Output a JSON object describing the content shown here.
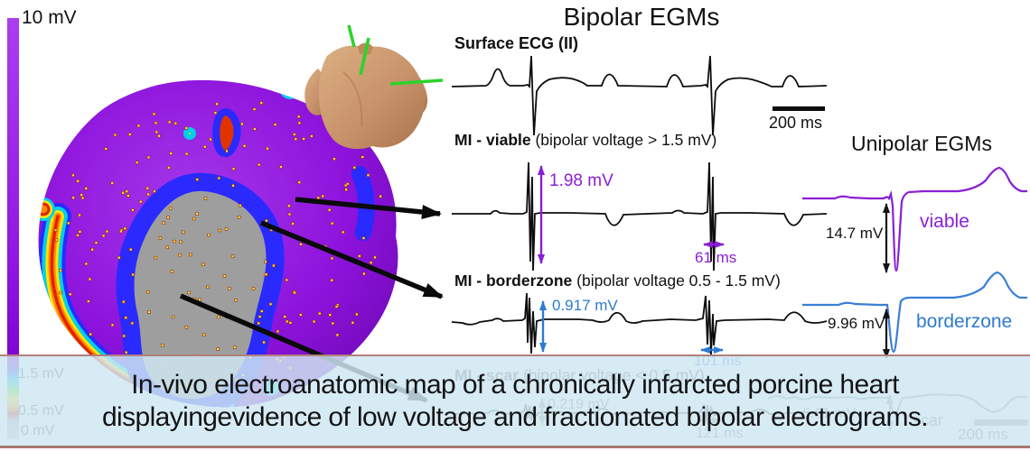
{
  "colorbar": {
    "top_label": "10 mV",
    "viable_threshold_label": "1.5 mV",
    "scar_threshold_label": "0.5 mV",
    "bottom_label": "0 mV"
  },
  "bipolar": {
    "title": "Bipolar EGMs",
    "surface_ecg_label": "Surface ECG (II)",
    "scalebar_label": "200 ms",
    "viable": {
      "label_bold": "MI - viable",
      "label_rest": " (bipolar voltage > 1.5 mV)",
      "voltage": "1.98 mV",
      "duration": "61 ms"
    },
    "borderzone": {
      "label_bold": "MI - borderzone",
      "label_rest": " (bipolar voltage 0.5 - 1.5 mV)",
      "voltage": "0.917 mV",
      "duration": "101 ms"
    },
    "scar": {
      "label_bold": "MI - scar",
      "label_rest": " (bipolar voltage < 0.5 mV)",
      "voltage": "0.219 mV",
      "duration": "121 ms"
    }
  },
  "unipolar": {
    "title": "Unipolar EGMs",
    "viable": {
      "voltage": "14.7 mV",
      "label": "viable"
    },
    "borderzone": {
      "voltage": "9.96 mV",
      "label": "borderzone"
    },
    "scar": {
      "voltage": "6.61 mV",
      "label": "scar",
      "scalebar_label": "200 ms"
    }
  },
  "caption": {
    "line1": "In-vivo electroanatomic map of a chronically infarcted porcine heart",
    "line2": "displayingevidence of low voltage and fractionated bipolar electrograms."
  },
  "colors": {
    "viable_accent": "#8a1fd4",
    "borderzone_accent": "#2e7bd0",
    "scar_accent": "#8a8a8a",
    "map_healthy": "#8d13dc",
    "map_scar_gray": "#9e9e9e",
    "caption_bg": "#cfe7f3",
    "caption_border": "#b2807a"
  }
}
